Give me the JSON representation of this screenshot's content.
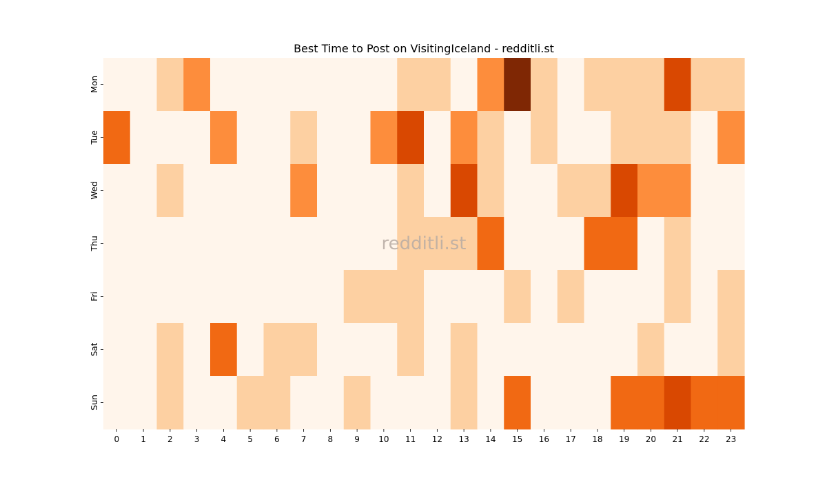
{
  "chart_data": {
    "type": "heatmap",
    "title": "Best Time to Post on VisitingIceland - redditli.st",
    "watermark": "redditli.st",
    "x_labels": [
      "0",
      "1",
      "2",
      "3",
      "4",
      "5",
      "6",
      "7",
      "8",
      "9",
      "10",
      "11",
      "12",
      "13",
      "14",
      "15",
      "16",
      "17",
      "18",
      "19",
      "20",
      "21",
      "22",
      "23"
    ],
    "y_labels": [
      "Mon",
      "Tue",
      "Wed",
      "Thu",
      "Fri",
      "Sat",
      "Sun"
    ],
    "value_range": [
      0,
      5
    ],
    "color_scale": [
      "#fff5eb",
      "#fdd0a2",
      "#fd8d3c",
      "#f16913",
      "#d94801",
      "#7f2704"
    ],
    "values": [
      [
        0,
        0,
        1,
        2,
        0,
        0,
        0,
        0,
        0,
        0,
        0,
        1,
        1,
        0,
        2,
        5,
        1,
        0,
        1,
        1,
        1,
        4,
        1,
        1
      ],
      [
        3,
        0,
        0,
        0,
        2,
        0,
        0,
        1,
        0,
        0,
        2,
        4,
        0,
        2,
        1,
        0,
        1,
        0,
        0,
        1,
        1,
        1,
        0,
        2
      ],
      [
        0,
        0,
        1,
        0,
        0,
        0,
        0,
        2,
        0,
        0,
        0,
        1,
        0,
        4,
        1,
        0,
        0,
        1,
        1,
        4,
        2,
        2,
        0,
        0
      ],
      [
        0,
        0,
        0,
        0,
        0,
        0,
        0,
        0,
        0,
        0,
        0,
        1,
        1,
        1,
        3,
        0,
        0,
        0,
        3,
        3,
        0,
        1,
        0,
        0
      ],
      [
        0,
        0,
        0,
        0,
        0,
        0,
        0,
        0,
        0,
        1,
        1,
        1,
        0,
        0,
        0,
        1,
        0,
        1,
        0,
        0,
        0,
        1,
        0,
        1
      ],
      [
        0,
        0,
        1,
        0,
        3,
        0,
        1,
        1,
        0,
        0,
        0,
        1,
        0,
        1,
        0,
        0,
        0,
        0,
        0,
        0,
        1,
        0,
        0,
        1
      ],
      [
        0,
        0,
        1,
        0,
        0,
        1,
        1,
        0,
        0,
        1,
        0,
        0,
        0,
        1,
        0,
        3,
        0,
        0,
        0,
        3,
        3,
        4,
        3,
        3
      ]
    ],
    "legend": "none",
    "grid": false
  }
}
